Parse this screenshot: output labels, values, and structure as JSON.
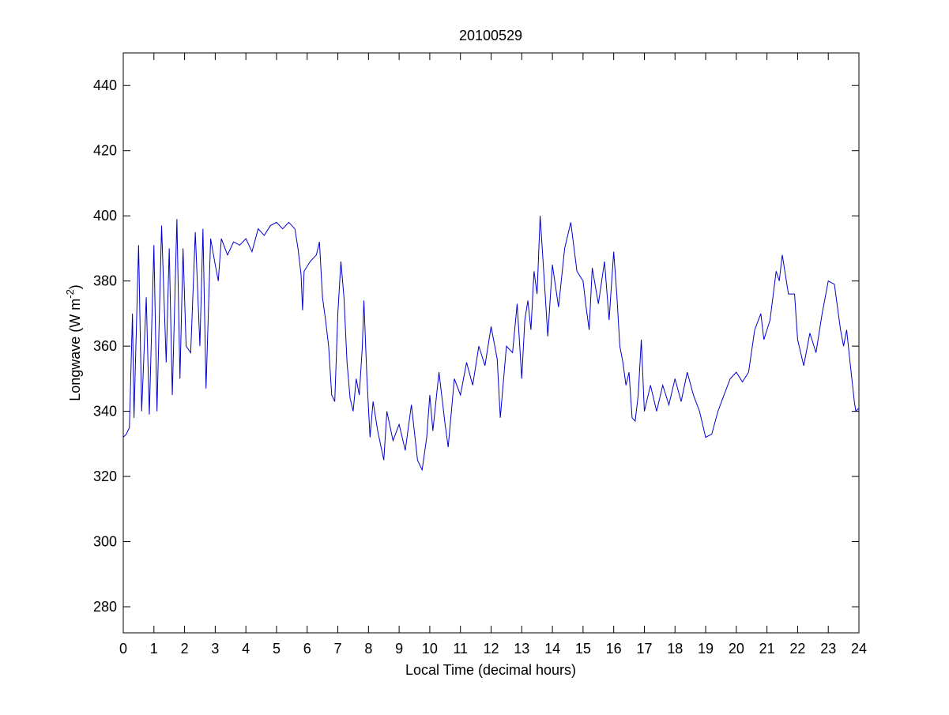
{
  "chart_data": {
    "type": "line",
    "title": "20100529",
    "xlabel": "Local Time (decimal hours)",
    "ylabel": [
      "Longwave (W m",
      "-2",
      ")"
    ],
    "color": "#0000cc",
    "xlim": [
      0,
      24
    ],
    "ylim": [
      272,
      450
    ],
    "xticks": [
      0,
      1,
      2,
      3,
      4,
      5,
      6,
      7,
      8,
      9,
      10,
      11,
      12,
      13,
      14,
      15,
      16,
      17,
      18,
      19,
      20,
      21,
      22,
      23,
      24
    ],
    "yticks": [
      280,
      300,
      320,
      340,
      360,
      380,
      400,
      420,
      440
    ],
    "x": [
      0,
      0.1,
      0.2,
      0.3,
      0.35,
      0.5,
      0.6,
      0.75,
      0.85,
      1.0,
      1.1,
      1.25,
      1.4,
      1.5,
      1.6,
      1.75,
      1.85,
      1.95,
      2.05,
      2.2,
      2.35,
      2.5,
      2.6,
      2.7,
      2.85,
      3.0,
      3.1,
      3.2,
      3.4,
      3.6,
      3.8,
      4.0,
      4.2,
      4.4,
      4.6,
      4.8,
      5.0,
      5.2,
      5.4,
      5.6,
      5.7,
      5.8,
      5.85,
      5.9,
      6.1,
      6.3,
      6.4,
      6.5,
      6.6,
      6.7,
      6.8,
      6.9,
      7.0,
      7.1,
      7.2,
      7.3,
      7.4,
      7.5,
      7.6,
      7.7,
      7.8,
      7.85,
      7.95,
      8.05,
      8.15,
      8.3,
      8.5,
      8.6,
      8.8,
      9.0,
      9.2,
      9.4,
      9.6,
      9.75,
      9.9,
      10.0,
      10.1,
      10.3,
      10.5,
      10.6,
      10.8,
      11.0,
      11.2,
      11.4,
      11.6,
      11.8,
      12.0,
      12.2,
      12.3,
      12.5,
      12.7,
      12.85,
      13.0,
      13.1,
      13.2,
      13.3,
      13.4,
      13.5,
      13.6,
      13.75,
      13.85,
      14.0,
      14.2,
      14.4,
      14.6,
      14.8,
      15.0,
      15.1,
      15.2,
      15.3,
      15.5,
      15.7,
      15.85,
      16.0,
      16.1,
      16.2,
      16.3,
      16.4,
      16.5,
      16.6,
      16.7,
      16.8,
      16.9,
      17.0,
      17.2,
      17.4,
      17.6,
      17.8,
      18.0,
      18.2,
      18.4,
      18.6,
      18.8,
      19.0,
      19.2,
      19.4,
      19.6,
      19.8,
      20.0,
      20.2,
      20.4,
      20.6,
      20.8,
      20.9,
      21.1,
      21.3,
      21.4,
      21.5,
      21.7,
      21.9,
      22.0,
      22.2,
      22.4,
      22.6,
      22.8,
      23.0,
      23.2,
      23.4,
      23.5,
      23.6,
      23.7,
      23.85,
      23.9,
      24.0
    ],
    "values": [
      332,
      333,
      335,
      370,
      338,
      391,
      340,
      375,
      339,
      391,
      340,
      397,
      355,
      390,
      345,
      399,
      350,
      390,
      360,
      358,
      395,
      360,
      396,
      347,
      393,
      385,
      380,
      393,
      388,
      392,
      391,
      393,
      389,
      396,
      394,
      397,
      398,
      396,
      398,
      396,
      390,
      382,
      371,
      383,
      386,
      388,
      392,
      375,
      368,
      360,
      345,
      343,
      370,
      386,
      375,
      355,
      344,
      340,
      350,
      345,
      360,
      374,
      350,
      332,
      343,
      334,
      325,
      340,
      331,
      336,
      328,
      342,
      325,
      322,
      332,
      345,
      334,
      352,
      336,
      329,
      350,
      345,
      355,
      348,
      360,
      354,
      366,
      356,
      338,
      360,
      358,
      373,
      350,
      368,
      374,
      365,
      383,
      376,
      400,
      378,
      363,
      385,
      372,
      390,
      398,
      383,
      380,
      372,
      365,
      384,
      373,
      386,
      368,
      389,
      376,
      360,
      355,
      348,
      352,
      338,
      337,
      345,
      362,
      340,
      348,
      340,
      348,
      342,
      350,
      343,
      352,
      345,
      340,
      332,
      333,
      340,
      345,
      350,
      352,
      349,
      352,
      365,
      370,
      362,
      368,
      383,
      380,
      388,
      376,
      376,
      362,
      354,
      364,
      358,
      370,
      380,
      379,
      365,
      360,
      365,
      356,
      343,
      340,
      341
    ]
  }
}
